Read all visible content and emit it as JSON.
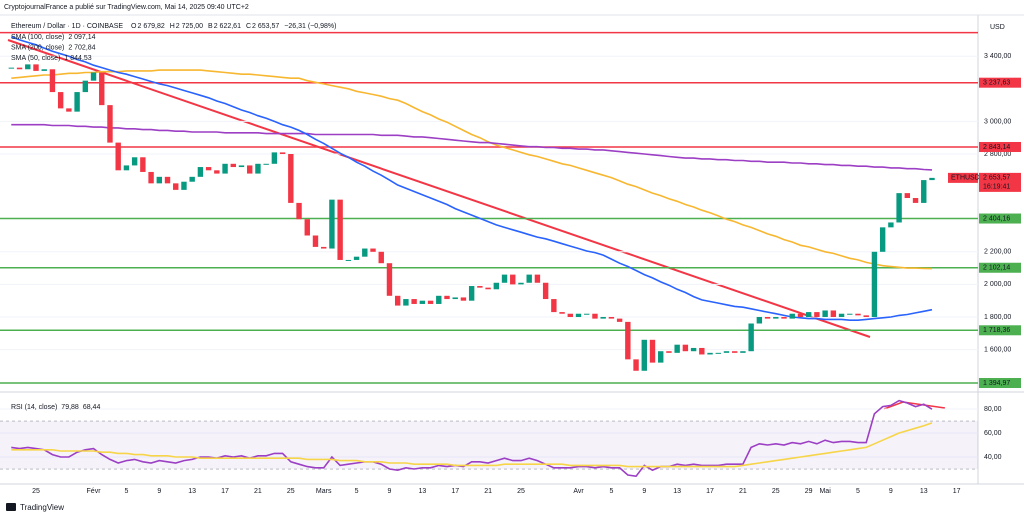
{
  "header": {
    "publisher": "CryptojournalFrance a publié sur TradingView.com, Mai 14, 2025 09:40 UTC+2",
    "symbol": "Ethereum / Dollar · 1D · COINBASE",
    "ohlc": [
      {
        "key": "O",
        "value": "2 679,82"
      },
      {
        "key": "H",
        "value": "2 725,00"
      },
      {
        "key": "B",
        "value": "2 622,61"
      },
      {
        "key": "C",
        "value": "2 653,57"
      }
    ],
    "change": "−26,31 (−0,98%)"
  },
  "chart_data": [
    {
      "type": "candlestick",
      "currency": "USD",
      "categories": [
        null,
        null,
        null,
        "25",
        null,
        null,
        null,
        null,
        null,
        null,
        "Févr",
        null,
        null,
        null,
        "5",
        null,
        null,
        null,
        "9",
        null,
        null,
        null,
        "13",
        null,
        null,
        null,
        "17",
        null,
        null,
        null,
        "21",
        null,
        null,
        null,
        "25",
        null,
        null,
        null,
        "Mars",
        null,
        null,
        null,
        "5",
        null,
        null,
        null,
        "9",
        null,
        null,
        null,
        "13",
        null,
        null,
        null,
        "17",
        null,
        null,
        null,
        "21",
        null,
        null,
        null,
        "25",
        null,
        null,
        null,
        null,
        null,
        null,
        "Avr",
        null,
        null,
        null,
        "5",
        null,
        null,
        null,
        "9",
        null,
        null,
        null,
        "13",
        null,
        null,
        null,
        "17",
        null,
        null,
        null,
        "21",
        null,
        null,
        null,
        "25",
        null,
        null,
        null,
        "29",
        null,
        "Mai",
        null,
        null,
        null,
        "5",
        null,
        null,
        null,
        "9",
        null,
        null,
        null,
        "13",
        null,
        null,
        null,
        "17"
      ],
      "values": [
        3330,
        3320,
        3350,
        3310,
        3320,
        3180,
        3080,
        3060,
        3180,
        3250,
        3300,
        3100,
        2870,
        2700,
        2730,
        2780,
        2690,
        2620,
        2660,
        2620,
        2580,
        2630,
        2660,
        2720,
        2700,
        2680,
        2740,
        2720,
        2730,
        2680,
        2740,
        2740,
        2810,
        2800,
        2500,
        2400,
        2300,
        2230,
        2220,
        2520,
        2150,
        2150,
        2170,
        2220,
        2200,
        2130,
        1930,
        1870,
        1910,
        1880,
        1900,
        1880,
        1930,
        1910,
        1920,
        1900,
        1990,
        1980,
        1970,
        2010,
        2060,
        2000,
        2010,
        2060,
        2010,
        1910,
        1830,
        1820,
        1800,
        1820,
        1820,
        1790,
        1800,
        1790,
        1770,
        1540,
        1470,
        1660,
        1520,
        1590,
        1580,
        1630,
        1590,
        1610,
        1570,
        1580,
        1580,
        1590,
        1580,
        1590,
        1760,
        1800,
        1790,
        1800,
        1790,
        1820,
        1800,
        1830,
        1800,
        1840,
        1800,
        1820,
        1820,
        1810,
        1800,
        2200,
        2350,
        2380,
        2560,
        2530,
        2500,
        2640,
        2653.57,
        null,
        null,
        null
      ],
      "up_color": "#089981",
      "down_color": "#f23645",
      "ylim": [
        1352,
        3653
      ],
      "yticks": [
        {
          "value": 1600,
          "label": "1 600,00"
        },
        {
          "value": 1800,
          "label": "1 800,00"
        },
        {
          "value": 2000,
          "label": "2 000,00"
        },
        {
          "value": 2200,
          "label": "2 200,00"
        },
        {
          "value": 2800,
          "label": "2 800,00"
        },
        {
          "value": 3000,
          "label": "3 000,00"
        },
        {
          "value": 3400,
          "label": "3 400,00"
        }
      ],
      "grid": true,
      "series": [
        {
          "name": "SMA (100, close)",
          "legend_value": "2 097,14",
          "color": "#f7b731",
          "values": [
            3265,
            3270,
            3275,
            3280,
            3285,
            3285,
            3290,
            3295,
            3295,
            3300,
            3300,
            3305,
            3305,
            3305,
            3310,
            3310,
            3310,
            3310,
            3315,
            3315,
            3315,
            3315,
            3315,
            3315,
            3310,
            3305,
            3300,
            3295,
            3290,
            3290,
            3285,
            3280,
            3275,
            3270,
            3265,
            3265,
            3250,
            3240,
            3230,
            3220,
            3210,
            3200,
            3185,
            3175,
            3165,
            3155,
            3140,
            3130,
            3110,
            3085,
            3060,
            3040,
            3015,
            2995,
            2970,
            2945,
            2920,
            2900,
            2875,
            2855,
            2840,
            2825,
            2810,
            2795,
            2785,
            2770,
            2755,
            2740,
            2730,
            2715,
            2700,
            2685,
            2670,
            2655,
            2635,
            2615,
            2600,
            2580,
            2560,
            2545,
            2525,
            2510,
            2490,
            2475,
            2455,
            2440,
            2420,
            2400,
            2385,
            2365,
            2350,
            2330,
            2310,
            2295,
            2275,
            2260,
            2240,
            2230,
            2215,
            2200,
            2190,
            2175,
            2160,
            2150,
            2135,
            2125,
            2115,
            2110,
            2105,
            2100,
            2100,
            2098,
            2097.14,
            null,
            null,
            null
          ]
        },
        {
          "name": "SMA (200, close)",
          "legend_value": "2 702,84",
          "color": "#9c3fc4",
          "values": [
            2980,
            2980,
            2980,
            2980,
            2980,
            2975,
            2975,
            2975,
            2970,
            2970,
            2965,
            2965,
            2960,
            2960,
            2955,
            2955,
            2950,
            2950,
            2945,
            2945,
            2940,
            2940,
            2935,
            2935,
            2935,
            2935,
            2930,
            2930,
            2930,
            2930,
            2930,
            2925,
            2925,
            2925,
            2925,
            2925,
            2925,
            2920,
            2920,
            2920,
            2920,
            2920,
            2920,
            2920,
            2920,
            2915,
            2915,
            2915,
            2910,
            2905,
            2905,
            2900,
            2895,
            2890,
            2885,
            2880,
            2875,
            2870,
            2870,
            2865,
            2860,
            2855,
            2850,
            2845,
            2845,
            2840,
            2840,
            2835,
            2835,
            2830,
            2830,
            2825,
            2825,
            2820,
            2815,
            2810,
            2805,
            2800,
            2795,
            2790,
            2785,
            2780,
            2775,
            2775,
            2770,
            2770,
            2765,
            2765,
            2760,
            2760,
            2755,
            2755,
            2750,
            2750,
            2750,
            2745,
            2745,
            2740,
            2740,
            2735,
            2735,
            2730,
            2730,
            2725,
            2725,
            2720,
            2720,
            2715,
            2715,
            2710,
            2710,
            2705,
            2702.84,
            null,
            null,
            null
          ]
        },
        {
          "name": "SMA (50, close)",
          "legend_value": "1 844,53",
          "color": "#2962ff",
          "values": [
            3520,
            3500,
            3485,
            3470,
            3450,
            3430,
            3415,
            3400,
            3380,
            3365,
            3345,
            3330,
            3315,
            3300,
            3290,
            3275,
            3260,
            3245,
            3230,
            3220,
            3205,
            3190,
            3175,
            3160,
            3145,
            3125,
            3110,
            3090,
            3070,
            3055,
            3035,
            3020,
            3000,
            2980,
            2965,
            2945,
            2920,
            2890,
            2865,
            2835,
            2805,
            2780,
            2750,
            2725,
            2695,
            2670,
            2640,
            2610,
            2590,
            2570,
            2550,
            2530,
            2510,
            2490,
            2465,
            2445,
            2425,
            2405,
            2385,
            2365,
            2350,
            2335,
            2320,
            2305,
            2290,
            2280,
            2265,
            2250,
            2235,
            2220,
            2205,
            2195,
            2180,
            2155,
            2130,
            2110,
            2085,
            2060,
            2040,
            2015,
            1995,
            1970,
            1950,
            1925,
            1905,
            1895,
            1885,
            1875,
            1865,
            1860,
            1850,
            1840,
            1830,
            1820,
            1810,
            1800,
            1795,
            1790,
            1790,
            1785,
            1785,
            1785,
            1780,
            1780,
            1785,
            1790,
            1795,
            1800,
            1810,
            1815,
            1825,
            1835,
            1844.53,
            null,
            null,
            null
          ]
        }
      ],
      "levels": [
        {
          "value": 3545,
          "color": "#f23645"
        },
        {
          "value": 3237.63,
          "label": "3 237,63",
          "color": "#f23645"
        },
        {
          "value": 2843.14,
          "label": "2 843,14",
          "color": "#f23645"
        },
        {
          "value": 2404.16,
          "label": "2 404,16",
          "color": "#4caf50"
        },
        {
          "value": 2102.14,
          "label": "2 102,14",
          "color": "#4caf50"
        },
        {
          "value": 1718.36,
          "label": "1 718,36",
          "color": "#4caf50"
        },
        {
          "value": 1394.97,
          "label": "1 394,97",
          "color": "#4caf50"
        }
      ],
      "last_price": {
        "symbol": "ETHUSD",
        "value": 2653.57,
        "label": "2 653,57",
        "countdown": "16:19:41",
        "color": "#f23645"
      }
    },
    {
      "type": "line",
      "ylim": [
        19.2,
        91.7
      ],
      "yticks": [
        {
          "value": 40,
          "label": "40,00"
        },
        {
          "value": 60,
          "label": "60,00"
        },
        {
          "value": 80,
          "label": "80,00"
        }
      ],
      "bands": [
        30,
        70
      ],
      "series": [
        {
          "name": "RSI (14, close)",
          "legend_value": "79,88",
          "color": "#9c3fc4",
          "values": [
            48,
            47,
            48,
            47,
            46,
            42,
            40,
            40,
            44,
            46,
            47,
            42,
            38,
            35,
            37,
            38,
            36,
            35,
            37,
            36,
            35,
            37,
            38,
            40,
            40,
            39,
            41,
            40,
            41,
            39,
            41,
            41,
            43,
            43,
            36,
            34,
            32,
            31,
            31,
            40,
            33,
            34,
            35,
            36,
            36,
            34,
            30,
            29,
            31,
            30,
            31,
            31,
            33,
            32,
            33,
            32,
            36,
            36,
            35,
            37,
            39,
            37,
            37,
            39,
            37,
            34,
            31,
            31,
            31,
            32,
            32,
            31,
            32,
            31,
            31,
            25,
            24,
            33,
            29,
            32,
            32,
            34,
            33,
            34,
            33,
            33,
            33,
            34,
            34,
            34,
            48,
            51,
            50,
            51,
            50,
            52,
            51,
            53,
            51,
            54,
            52,
            53,
            53,
            52,
            52,
            76,
            82,
            83,
            87,
            85,
            82,
            84,
            79.88,
            null,
            null,
            null
          ]
        },
        {
          "legend_value": "68,44",
          "color": "#f7d548",
          "values": [
            46,
            46,
            46,
            46,
            46,
            46,
            45,
            45,
            45,
            45,
            45,
            44,
            44,
            43,
            43,
            42,
            42,
            41,
            41,
            41,
            40,
            40,
            40,
            39,
            39,
            39,
            39,
            39,
            39,
            39,
            39,
            39,
            39,
            39,
            39,
            39,
            38,
            38,
            38,
            38,
            37,
            37,
            37,
            36,
            36,
            36,
            35,
            35,
            35,
            34,
            34,
            34,
            34,
            34,
            33,
            33,
            33,
            33,
            33,
            33,
            34,
            34,
            34,
            34,
            34,
            34,
            34,
            34,
            33,
            33,
            33,
            33,
            33,
            33,
            33,
            32,
            32,
            32,
            32,
            32,
            32,
            32,
            32,
            32,
            32,
            32,
            32,
            32,
            32,
            33,
            34,
            35,
            36,
            37,
            38,
            39,
            40,
            41,
            42,
            43,
            44,
            45,
            46,
            47,
            48,
            51,
            54,
            57,
            60,
            62,
            64,
            66,
            68.44,
            null,
            null,
            null
          ]
        }
      ]
    }
  ],
  "footer": "TradingView"
}
